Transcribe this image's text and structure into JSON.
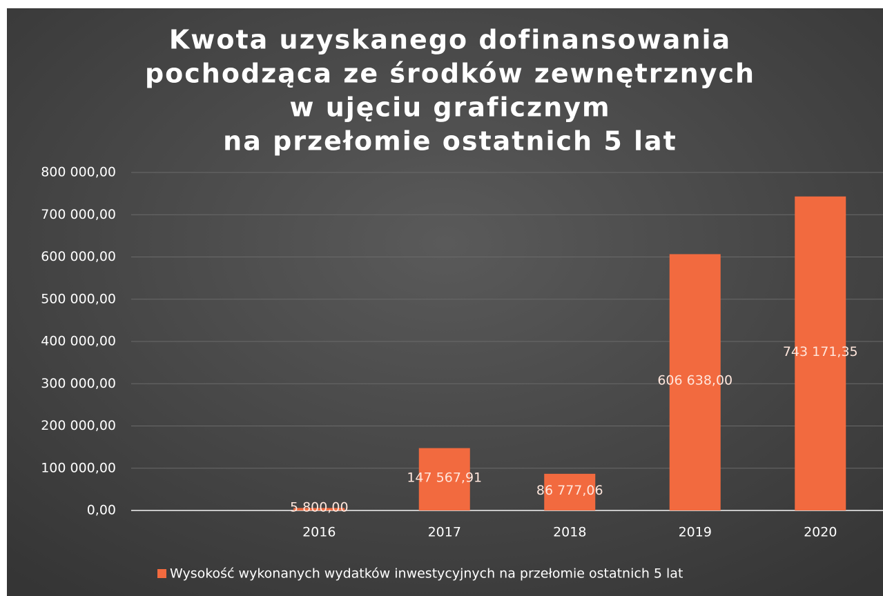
{
  "chart_data": {
    "type": "bar",
    "title": [
      "Kwota uzyskanego dofinansowania",
      "pochodząca ze środków zewnętrznych",
      "w ujęciu graficznym",
      "na przełomie ostatnich 5 lat"
    ],
    "categories": [
      null,
      "2016",
      "2017",
      "2018",
      "2019",
      "2020"
    ],
    "series": [
      {
        "name": "Wysokość wykonanych wydatków inwestycyjnych na przełomie ostatnich 5 lat",
        "color": "#f26a3f",
        "values": [
          null,
          5800,
          147567.91,
          86777.06,
          606638,
          743171.35
        ],
        "value_labels": [
          null,
          "5 800,00",
          "147 567,91",
          "86 777,06",
          "606 638,00",
          "743 171,35"
        ]
      }
    ],
    "ylim": [
      0,
      800000
    ],
    "yticks": [
      {
        "value": 0,
        "label": "0,00"
      },
      {
        "value": 100000,
        "label": "100 000,00"
      },
      {
        "value": 200000,
        "label": "200 000,00"
      },
      {
        "value": 300000,
        "label": "300 000,00"
      },
      {
        "value": 400000,
        "label": "400 000,00"
      },
      {
        "value": 500000,
        "label": "500 000,00"
      },
      {
        "value": 600000,
        "label": "600 000,00"
      },
      {
        "value": 700000,
        "label": "700 000,00"
      },
      {
        "value": 800000,
        "label": "800 000,00"
      }
    ],
    "grid": true,
    "legend": "bottom"
  }
}
